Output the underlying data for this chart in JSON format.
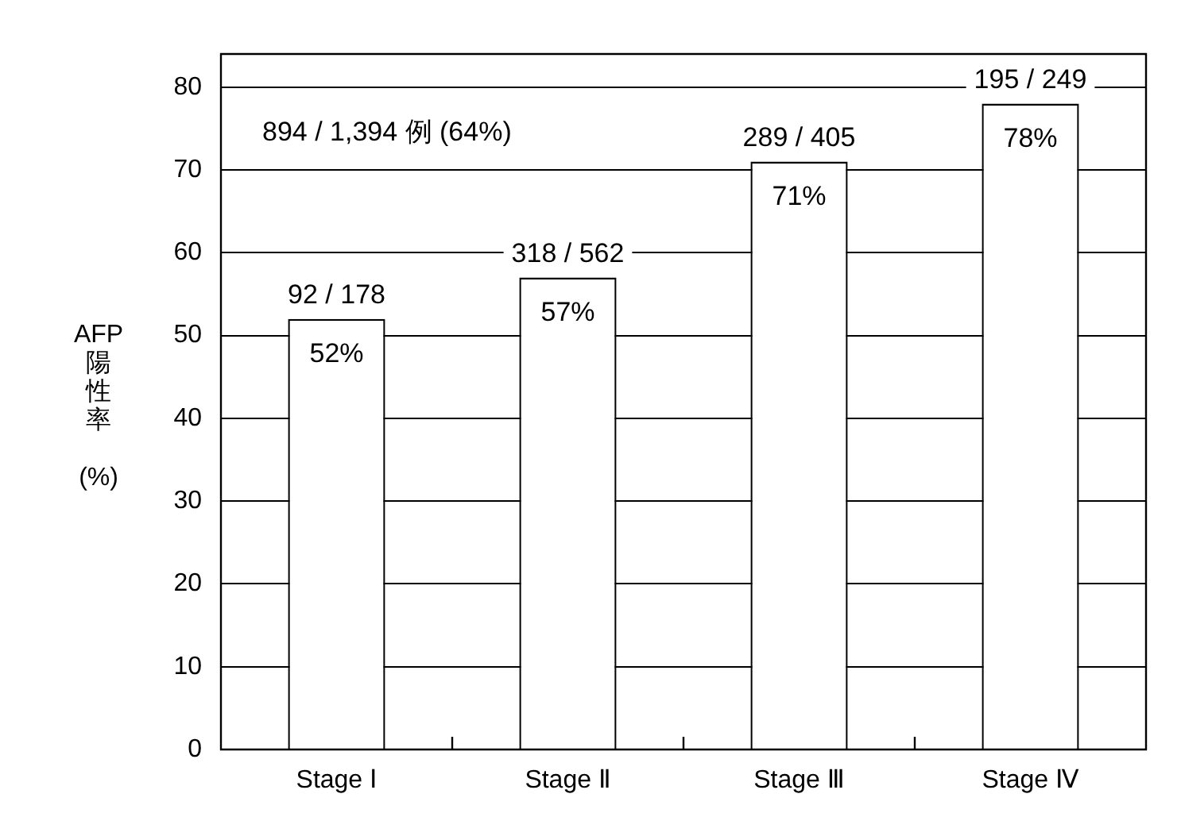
{
  "chart_data": {
    "type": "bar",
    "ylabel": "AFP陽性率 (%)",
    "categories": [
      "Stage Ⅰ",
      "Stage Ⅱ",
      "Stage Ⅲ",
      "Stage Ⅳ"
    ],
    "values": [
      52,
      57,
      71,
      78
    ],
    "color": "#ffffff",
    "value_labels": [
      "52%",
      "57%",
      "71%",
      "78%"
    ],
    "ylim": [
      0,
      84
    ],
    "yticks": [
      0,
      10,
      20,
      30,
      40,
      50,
      60,
      70,
      80
    ],
    "grid": "y",
    "annotations": [
      "894 / 1,394 例 (64%)",
      {
        "text": "92 / 178",
        "x": "Stage Ⅰ",
        "y": 52
      },
      {
        "text": "318 / 562",
        "x": "Stage Ⅱ",
        "y": 57
      },
      {
        "text": "289 / 405",
        "x": "Stage Ⅲ",
        "y": 71
      },
      {
        "text": "195 / 249",
        "x": "Stage Ⅳ",
        "y": 78
      }
    ]
  }
}
